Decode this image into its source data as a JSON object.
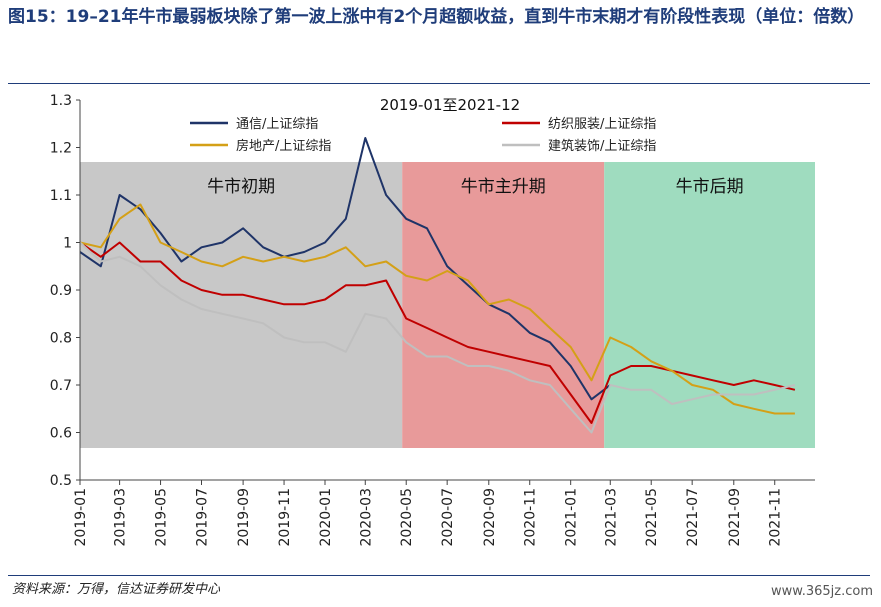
{
  "header": {
    "title": "图15：19–21年牛市最弱板块除了第一波上涨中有2个月超额收益，直到牛市末期才有阶段性表现（单位：倍数）"
  },
  "footer": {
    "source": "资料来源：万得，信达证券研发中心",
    "watermark": "www.365jz.com"
  },
  "chart_data": {
    "type": "line",
    "title": "2019-01至2021-12",
    "ylim": [
      0.5,
      1.3
    ],
    "yticks": [
      "0.5",
      "0.6",
      "0.7",
      "0.8",
      "0.9",
      "1",
      "1.1",
      "1.2",
      "1.3"
    ],
    "x_range": [
      "2019-01",
      "2021-12"
    ],
    "xticks": [
      "2019-01",
      "2019-03",
      "2019-05",
      "2019-07",
      "2019-09",
      "2019-11",
      "2020-01",
      "2020-03",
      "2020-05",
      "2020-07",
      "2020-09",
      "2020-11",
      "2021-01",
      "2021-03",
      "2021-05",
      "2021-07",
      "2021-09",
      "2021-11"
    ],
    "grid": false,
    "legend_position": "top",
    "phases": [
      {
        "label": "牛市初期",
        "start": "2019-01",
        "end": "2020-04-25",
        "color": "#c8c8c8"
      },
      {
        "label": "牛市主升期",
        "start": "2020-04-25",
        "end": "2021-02-20",
        "color": "#e89a9a"
      },
      {
        "label": "牛市后期",
        "start": "2021-02-20",
        "end": "2021-12-31",
        "color": "#9fdcbf"
      }
    ],
    "series": [
      {
        "name": "通信/上证综指",
        "color": "#1f3468",
        "x": [
          "2019-01",
          "2019-02",
          "2019-03",
          "2019-04",
          "2019-05",
          "2019-06",
          "2019-07",
          "2019-08",
          "2019-09",
          "2019-10",
          "2019-11",
          "2019-12",
          "2020-01",
          "2020-02",
          "2020-03",
          "2020-04",
          "2020-05",
          "2020-06",
          "2020-07",
          "2020-08",
          "2020-09",
          "2020-10",
          "2020-11",
          "2020-12",
          "2021-01",
          "2021-02",
          "2021-03"
        ],
        "values": [
          0.98,
          0.95,
          1.1,
          1.07,
          1.02,
          0.96,
          0.99,
          1.0,
          1.03,
          0.99,
          0.97,
          0.98,
          1.0,
          1.05,
          1.22,
          1.1,
          1.05,
          1.03,
          0.95,
          0.91,
          0.87,
          0.85,
          0.81,
          0.79,
          0.74,
          0.67,
          0.7
        ]
      },
      {
        "name": "纺织服装/上证综指",
        "color": "#c00000",
        "x": [
          "2019-01",
          "2019-02",
          "2019-03",
          "2019-04",
          "2019-05",
          "2019-06",
          "2019-07",
          "2019-08",
          "2019-09",
          "2019-10",
          "2019-11",
          "2019-12",
          "2020-01",
          "2020-02",
          "2020-03",
          "2020-04",
          "2020-05",
          "2020-06",
          "2020-07",
          "2020-08",
          "2020-09",
          "2020-10",
          "2020-11",
          "2020-12",
          "2021-01",
          "2021-02",
          "2021-03",
          "2021-04",
          "2021-05",
          "2021-06",
          "2021-07",
          "2021-08",
          "2021-09",
          "2021-10",
          "2021-11",
          "2021-12"
        ],
        "values": [
          1.0,
          0.97,
          1.0,
          0.96,
          0.96,
          0.92,
          0.9,
          0.89,
          0.89,
          0.88,
          0.87,
          0.87,
          0.88,
          0.91,
          0.91,
          0.92,
          0.84,
          0.82,
          0.8,
          0.78,
          0.77,
          0.76,
          0.75,
          0.74,
          0.68,
          0.62,
          0.72,
          0.74,
          0.74,
          0.73,
          0.72,
          0.71,
          0.7,
          0.71,
          0.7,
          0.69
        ]
      },
      {
        "name": "房地产/上证综指",
        "color": "#d4a017",
        "x": [
          "2019-01",
          "2019-02",
          "2019-03",
          "2019-04",
          "2019-05",
          "2019-06",
          "2019-07",
          "2019-08",
          "2019-09",
          "2019-10",
          "2019-11",
          "2019-12",
          "2020-01",
          "2020-02",
          "2020-03",
          "2020-04",
          "2020-05",
          "2020-06",
          "2020-07",
          "2020-08",
          "2020-09",
          "2020-10",
          "2020-11",
          "2020-12",
          "2021-01",
          "2021-02",
          "2021-03",
          "2021-04",
          "2021-05",
          "2021-06",
          "2021-07",
          "2021-08",
          "2021-09",
          "2021-10",
          "2021-11",
          "2021-12"
        ],
        "values": [
          1.0,
          0.99,
          1.05,
          1.08,
          1.0,
          0.98,
          0.96,
          0.95,
          0.97,
          0.96,
          0.97,
          0.96,
          0.97,
          0.99,
          0.95,
          0.96,
          0.93,
          0.92,
          0.94,
          0.92,
          0.87,
          0.88,
          0.86,
          0.82,
          0.78,
          0.71,
          0.8,
          0.78,
          0.75,
          0.73,
          0.7,
          0.69,
          0.66,
          0.65,
          0.64,
          0.64
        ]
      },
      {
        "name": "建筑装饰/上证综指",
        "color": "#bfbfbf",
        "x": [
          "2019-01",
          "2019-02",
          "2019-03",
          "2019-04",
          "2019-05",
          "2019-06",
          "2019-07",
          "2019-08",
          "2019-09",
          "2019-10",
          "2019-11",
          "2019-12",
          "2020-01",
          "2020-02",
          "2020-03",
          "2020-04",
          "2020-05",
          "2020-06",
          "2020-07",
          "2020-08",
          "2020-09",
          "2020-10",
          "2020-11",
          "2020-12",
          "2021-01",
          "2021-02",
          "2021-03",
          "2021-04",
          "2021-05",
          "2021-06",
          "2021-07",
          "2021-08",
          "2021-09",
          "2021-10",
          "2021-11",
          "2021-12"
        ],
        "values": [
          1.0,
          0.96,
          0.97,
          0.95,
          0.91,
          0.88,
          0.86,
          0.85,
          0.84,
          0.83,
          0.8,
          0.79,
          0.79,
          0.77,
          0.85,
          0.84,
          0.79,
          0.76,
          0.76,
          0.74,
          0.74,
          0.73,
          0.71,
          0.7,
          0.65,
          0.6,
          0.7,
          0.69,
          0.69,
          0.66,
          0.67,
          0.68,
          0.68,
          0.68,
          0.69,
          0.7
        ]
      }
    ]
  }
}
